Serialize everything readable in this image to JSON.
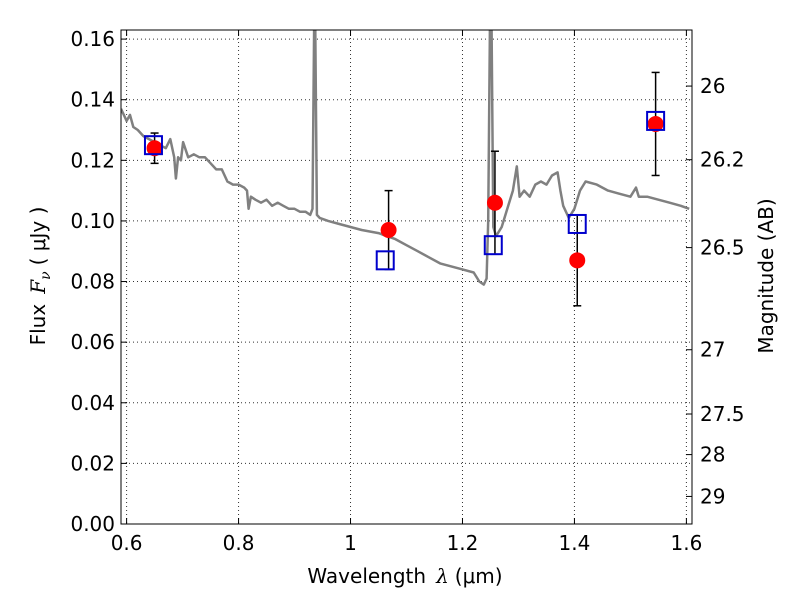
{
  "chart_data": {
    "type": "scatter",
    "xlabel": "Wavelength",
    "xlabel_symbol": "λ",
    "xlabel_unit": "(μm)",
    "ylabel": "Flux",
    "ylabel_symbol": "F",
    "ylabel_subscript": "ν",
    "ylabel_unit": "( μJy )",
    "y2label": "Magnitude (AB)",
    "xlim": [
      0.59,
      1.61
    ],
    "ylim": [
      0.0,
      0.163
    ],
    "grid": true,
    "x_ticks": [
      0.6,
      0.8,
      1.0,
      1.2,
      1.4,
      1.6
    ],
    "x_tick_labels": [
      "0.6",
      "0.8",
      "1",
      "1.2",
      "1.4",
      "1.6"
    ],
    "y_ticks": [
      0.0,
      0.02,
      0.04,
      0.06,
      0.08,
      0.1,
      0.12,
      0.14,
      0.16
    ],
    "y_tick_labels": [
      "0.00",
      "0.02",
      "0.04",
      "0.06",
      "0.08",
      "0.10",
      "0.12",
      "0.14",
      "0.16"
    ],
    "y2_ticks": [
      {
        "label": "26",
        "flux": 0.1445
      },
      {
        "label": "26.2",
        "flux": 0.1202
      },
      {
        "label": "26.5",
        "flux": 0.0912
      },
      {
        "label": "27",
        "flux": 0.0575
      },
      {
        "label": "27.5",
        "flux": 0.0363
      },
      {
        "label": "28",
        "flux": 0.0229
      },
      {
        "label": "29",
        "flux": 0.0091
      }
    ],
    "series": [
      {
        "kind": "line",
        "color": "#808080",
        "points": [
          [
            0.59,
            0.137
          ],
          [
            0.6,
            0.133
          ],
          [
            0.606,
            0.135
          ],
          [
            0.612,
            0.131
          ],
          [
            0.62,
            0.13
          ],
          [
            0.63,
            0.128
          ],
          [
            0.64,
            0.127
          ],
          [
            0.65,
            0.126
          ],
          [
            0.66,
            0.125
          ],
          [
            0.67,
            0.124
          ],
          [
            0.678,
            0.127
          ],
          [
            0.685,
            0.121
          ],
          [
            0.688,
            0.114
          ],
          [
            0.692,
            0.121
          ],
          [
            0.697,
            0.12
          ],
          [
            0.701,
            0.126
          ],
          [
            0.71,
            0.121
          ],
          [
            0.72,
            0.122
          ],
          [
            0.73,
            0.121
          ],
          [
            0.74,
            0.121
          ],
          [
            0.75,
            0.119
          ],
          [
            0.76,
            0.117
          ],
          [
            0.77,
            0.117
          ],
          [
            0.78,
            0.113
          ],
          [
            0.79,
            0.112
          ],
          [
            0.8,
            0.112
          ],
          [
            0.81,
            0.111
          ],
          [
            0.815,
            0.11
          ],
          [
            0.818,
            0.104
          ],
          [
            0.822,
            0.108
          ],
          [
            0.83,
            0.107
          ],
          [
            0.84,
            0.106
          ],
          [
            0.85,
            0.107
          ],
          [
            0.86,
            0.105
          ],
          [
            0.87,
            0.106
          ],
          [
            0.88,
            0.105
          ],
          [
            0.89,
            0.104
          ],
          [
            0.9,
            0.104
          ],
          [
            0.91,
            0.103
          ],
          [
            0.92,
            0.103
          ],
          [
            0.928,
            0.102
          ],
          [
            0.932,
            0.104
          ],
          [
            0.935,
            0.163
          ],
          [
            0.937,
            0.163
          ],
          [
            0.94,
            0.102
          ],
          [
            0.945,
            0.101
          ],
          [
            0.96,
            0.1
          ],
          [
            0.98,
            0.099
          ],
          [
            1.0,
            0.098
          ],
          [
            1.02,
            0.097
          ],
          [
            1.05,
            0.096
          ],
          [
            1.08,
            0.094
          ],
          [
            1.1,
            0.092
          ],
          [
            1.12,
            0.09
          ],
          [
            1.14,
            0.088
          ],
          [
            1.16,
            0.086
          ],
          [
            1.18,
            0.085
          ],
          [
            1.2,
            0.084
          ],
          [
            1.22,
            0.083
          ],
          [
            1.23,
            0.08
          ],
          [
            1.238,
            0.079
          ],
          [
            1.243,
            0.081
          ],
          [
            1.246,
            0.1
          ],
          [
            1.249,
            0.163
          ],
          [
            1.252,
            0.163
          ],
          [
            1.255,
            0.098
          ],
          [
            1.26,
            0.095
          ],
          [
            1.27,
            0.098
          ],
          [
            1.28,
            0.104
          ],
          [
            1.29,
            0.11
          ],
          [
            1.297,
            0.118
          ],
          [
            1.302,
            0.108
          ],
          [
            1.31,
            0.11
          ],
          [
            1.32,
            0.108
          ],
          [
            1.33,
            0.112
          ],
          [
            1.34,
            0.113
          ],
          [
            1.35,
            0.112
          ],
          [
            1.36,
            0.115
          ],
          [
            1.37,
            0.116
          ],
          [
            1.375,
            0.11
          ],
          [
            1.38,
            0.105
          ],
          [
            1.39,
            0.101
          ],
          [
            1.4,
            0.104
          ],
          [
            1.41,
            0.11
          ],
          [
            1.42,
            0.113
          ],
          [
            1.44,
            0.112
          ],
          [
            1.46,
            0.11
          ],
          [
            1.48,
            0.109
          ],
          [
            1.5,
            0.108
          ],
          [
            1.51,
            0.111
          ],
          [
            1.515,
            0.108
          ],
          [
            1.53,
            0.108
          ],
          [
            1.55,
            0.107
          ],
          [
            1.57,
            0.106
          ],
          [
            1.59,
            0.105
          ],
          [
            1.605,
            0.104
          ]
        ]
      },
      {
        "kind": "points",
        "marker": "filled-circle",
        "color": "#ff0000",
        "points": [
          {
            "x": 0.65,
            "y": 0.124,
            "yerr_low": 0.119,
            "yerr_high": 0.129
          },
          {
            "x": 1.068,
            "y": 0.097,
            "yerr_low": 0.084,
            "yerr_high": 0.11
          },
          {
            "x": 1.258,
            "y": 0.106,
            "yerr_low": 0.089,
            "yerr_high": 0.123
          },
          {
            "x": 1.405,
            "y": 0.087,
            "yerr_low": 0.072,
            "yerr_high": 0.102
          },
          {
            "x": 1.545,
            "y": 0.132,
            "yerr_low": 0.115,
            "yerr_high": 0.149
          }
        ]
      },
      {
        "kind": "points",
        "marker": "open-square",
        "color": "#0000cc",
        "points": [
          {
            "x": 0.648,
            "y": 0.125
          },
          {
            "x": 1.062,
            "y": 0.087
          },
          {
            "x": 1.255,
            "y": 0.092
          },
          {
            "x": 1.405,
            "y": 0.099
          },
          {
            "x": 1.545,
            "y": 0.133
          }
        ]
      }
    ]
  }
}
